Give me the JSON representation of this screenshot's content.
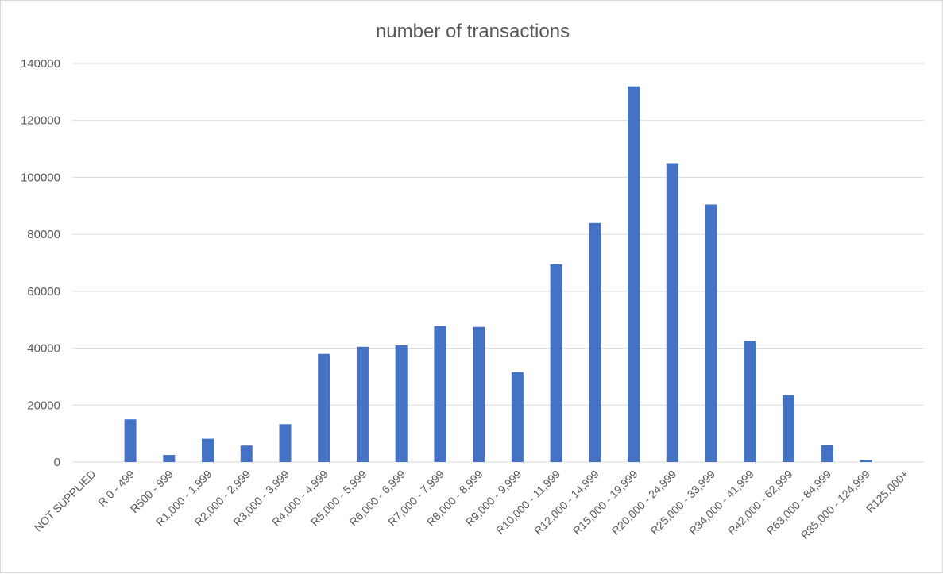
{
  "chart_data": {
    "type": "bar",
    "title": "number of transactions",
    "xlabel": "",
    "ylabel": "",
    "ylim": [
      0,
      140000
    ],
    "yticks": [
      0,
      20000,
      40000,
      60000,
      80000,
      100000,
      120000,
      140000
    ],
    "grid": true,
    "legend": "none",
    "bar_color": "#4472C4",
    "categories": [
      "NOT SUPPLIED",
      "R 0 - 499",
      "R500 - 999",
      "R1,000 - 1,999",
      "R2,000 - 2,999",
      "R3,000 - 3,999",
      "R4,000 - 4,999",
      "R5,000 - 5,999",
      "R6,000 - 6,999",
      "R7,000 - 7,999",
      "R8,000 - 8,999",
      "R9,000 - 9,999",
      "R10,000 - 11,999",
      "R12,000 - 14,999",
      "R15,000 - 19,999",
      "R20,000 - 24,999",
      "R25,000 - 33,999",
      "R34,000 - 41,999",
      "R42,000 - 62,999",
      "R63,000 - 84,999",
      "R85,000 - 124,999",
      "R125,000+"
    ],
    "values": [
      0,
      15000,
      2500,
      8200,
      5800,
      13300,
      38000,
      40500,
      41000,
      47800,
      47500,
      31600,
      69500,
      84000,
      132000,
      105000,
      90500,
      42500,
      23500,
      6000,
      700,
      0
    ]
  }
}
